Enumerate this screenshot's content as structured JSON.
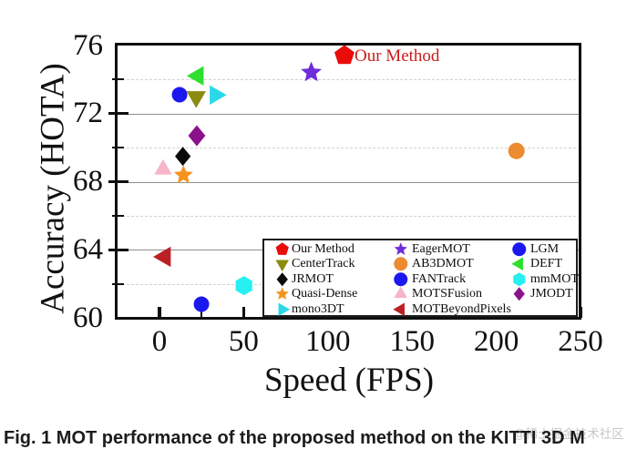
{
  "chart_data": {
    "type": "scatter",
    "xlabel": "Speed (FPS)",
    "ylabel": "Accuracy (HOTA)",
    "xlim": [
      -25,
      250
    ],
    "ylim": [
      60,
      76
    ],
    "x_major_ticks": [
      0,
      50,
      100,
      150,
      200,
      250
    ],
    "x_minor_ticks": [
      25,
      75,
      125,
      175,
      225
    ],
    "y_major_ticks": [
      60,
      64,
      68,
      72,
      76
    ],
    "y_minor_ticks": [
      62,
      66,
      70,
      74
    ],
    "solid_gridlines": [
      64,
      68,
      72
    ],
    "dashed_gridlines": [
      62,
      66,
      70,
      74
    ],
    "grid_solid_color": "#8f8f8f",
    "grid_dashed_color": "#d2d2d2",
    "frame_color": "#0f0f0f",
    "series": [
      {
        "name": "Our Method",
        "marker": "pentagon",
        "color": "#ea0b0b",
        "fps": 110,
        "hota": 75.4,
        "size": 11.5
      },
      {
        "name": "CenterTrack",
        "marker": "triangle-down",
        "color": "#8b8b11",
        "fps": 22,
        "hota": 73.0,
        "size": 11
      },
      {
        "name": "JRMOT",
        "marker": "diamond",
        "color": "#0a0a0a",
        "fps": 14,
        "hota": 69.5,
        "size": 10.5
      },
      {
        "name": "Quasi-Dense",
        "marker": "star",
        "color": "#f6931d",
        "fps": 14,
        "hota": 68.4,
        "size": 11
      },
      {
        "name": "mono3DT",
        "marker": "triangle-right",
        "color": "#29d9e9",
        "fps": 33,
        "hota": 73.1,
        "size": 11
      },
      {
        "name": "EagerMOT",
        "marker": "star",
        "color": "#6f2cdb",
        "fps": 90,
        "hota": 74.4,
        "size": 12
      },
      {
        "name": "AB3DMOT",
        "marker": "circle",
        "color": "#ec8b2f",
        "fps": 212,
        "hota": 69.8,
        "size": 9
      },
      {
        "name": "FANTrack",
        "marker": "circle",
        "color": "#1b18ef",
        "fps": 25,
        "hota": 60.8,
        "size": 8.5
      },
      {
        "name": "MOTSFusion",
        "marker": "triangle-up",
        "color": "#f7b5ca",
        "fps": 2,
        "hota": 68.7,
        "size": 10
      },
      {
        "name": "MOTBeyondPixels",
        "marker": "triangle-left",
        "color": "#bb2025",
        "fps": 3,
        "hota": 63.6,
        "size": 11.5
      },
      {
        "name": "LGM",
        "marker": "circle",
        "color": "#1b18ef",
        "fps": 12,
        "hota": 73.1,
        "size": 8.5
      },
      {
        "name": "DEFT",
        "marker": "triangle-left",
        "color": "#2edf2e",
        "fps": 23,
        "hota": 74.2,
        "size": 11
      },
      {
        "name": "mmMOT",
        "marker": "hexagon",
        "color": "#26f0f0",
        "fps": 50,
        "hota": 61.9,
        "size": 10.5
      },
      {
        "name": "JMODT",
        "marker": "diamond",
        "color": "#8c118c",
        "fps": 22,
        "hota": 70.7,
        "size": 11.5
      }
    ],
    "annotation": {
      "text": "Our Method",
      "color": "#cb1a1a"
    },
    "legend": {
      "position": "bottom-right",
      "columns": [
        [
          "Our Method",
          "CenterTrack",
          "JRMOT",
          "Quasi-Dense",
          "mono3DT"
        ],
        [
          "EagerMOT",
          "AB3DMOT",
          "FANTrack",
          "MOTSFusion",
          "MOTBeyondPixels"
        ],
        [
          "LGM",
          "DEFT",
          "mmMOT",
          "JMODT"
        ]
      ]
    }
  },
  "watermark": "@稀土掘金技术社区",
  "caption": "Fig. 1 MOT performance of the proposed method on the KITTI 3D M"
}
